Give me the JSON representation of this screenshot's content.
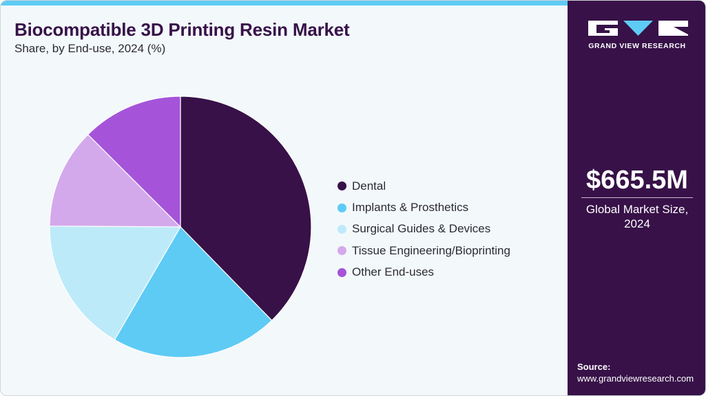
{
  "header": {
    "title": "Biocompatible 3D Printing Resin Market",
    "subtitle": "Share, by End-use, 2024 (%)"
  },
  "legend": {
    "items": [
      {
        "label": "Dental",
        "color": "#371148"
      },
      {
        "label": "Implants & Prosthetics",
        "color": "#5ecbf5"
      },
      {
        "label": "Surgical Guides & Devices",
        "color": "#bdeaf9"
      },
      {
        "label": "Tissue Engineering/Bioprinting",
        "color": "#d4a9ec"
      },
      {
        "label": "Other End-uses",
        "color": "#a554d9"
      }
    ]
  },
  "sidebar": {
    "brand": "GRAND VIEW RESEARCH",
    "market_value": "$665.5M",
    "market_label_line1": "Global Market Size,",
    "market_label_line2": "2024",
    "source_title": "Source:",
    "source_url": "www.grandviewresearch.com"
  },
  "colors": {
    "brand_dark": "#371148",
    "accent": "#5ecbf5",
    "background": "#f3f8fb"
  },
  "chart_data": {
    "type": "pie",
    "title": "Biocompatible 3D Printing Resin Market",
    "subtitle": "Share, by End-use, 2024 (%)",
    "categories": [
      "Dental",
      "Implants & Prosthetics",
      "Surgical Guides & Devices",
      "Tissue Engineering/Bioprinting",
      "Other End-uses"
    ],
    "values": [
      37.7,
      20.7,
      16.7,
      12.4,
      12.5
    ],
    "colors": [
      "#371148",
      "#5ecbf5",
      "#bdeaf9",
      "#d4a9ec",
      "#a554d9"
    ],
    "start_angle": "12 o'clock, clockwise",
    "legend_position": "right",
    "units": "%"
  }
}
